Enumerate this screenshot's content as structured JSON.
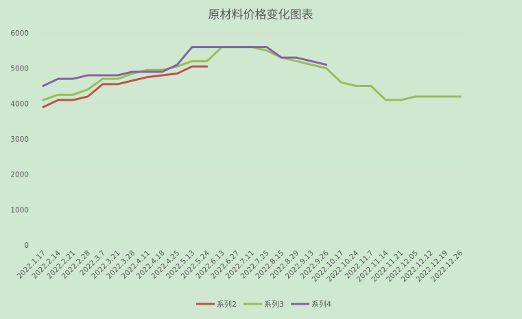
{
  "chart_data": {
    "type": "line",
    "title": "原材料价格变化图表",
    "xlabel": "",
    "ylabel": "",
    "ylim": [
      0,
      6000
    ],
    "yticks": [
      0,
      1000,
      2000,
      3000,
      4000,
      5000,
      6000
    ],
    "grid": true,
    "legend_position": "bottom",
    "categories": [
      "2022.1.17",
      "2022.2.14",
      "2022.2.21",
      "2022.2.28",
      "2022.3.7",
      "2022.3.21",
      "2022.3.28",
      "2022.4.11",
      "2022.4.18",
      "2022.4.25",
      "2022.5.13",
      "2022.5.24",
      "2022.6.13",
      "2022.6.27",
      "2022.7.11",
      "2022.7.25",
      "2022.8.15",
      "2022.8.29",
      "2022.9.13",
      "2022.9.26",
      "2022.10.17",
      "2022.10.24",
      "2022.11.7",
      "2022.11.14",
      "2022.11.21",
      "2022.12.05",
      "2022.12.12",
      "2022.12.19",
      "2022.12.26"
    ],
    "series": [
      {
        "name": "系列2",
        "color": "#c0504d",
        "values": [
          3900,
          4100,
          4100,
          4200,
          4550,
          4550,
          4650,
          4750,
          4800,
          4850,
          5050,
          5050,
          null,
          null,
          null,
          null,
          null,
          null,
          null,
          null,
          null,
          null,
          null,
          null,
          null,
          null,
          null,
          null,
          null
        ]
      },
      {
        "name": "系列3",
        "color": "#9bbb59",
        "values": [
          4100,
          4250,
          4250,
          4400,
          4700,
          4700,
          4850,
          4950,
          4950,
          5050,
          5200,
          5200,
          5600,
          5600,
          5600,
          5500,
          5300,
          5200,
          5100,
          5000,
          4600,
          4500,
          4500,
          4100,
          4100,
          4200,
          4200,
          4200,
          4200
        ]
      },
      {
        "name": "系列4",
        "color": "#8064a2",
        "values": [
          4500,
          4700,
          4700,
          4800,
          4800,
          4800,
          4900,
          4900,
          4900,
          5100,
          5600,
          5600,
          5600,
          5600,
          5600,
          5600,
          5300,
          5300,
          5200,
          5100,
          null,
          null,
          null,
          null,
          null,
          null,
          null,
          null,
          null
        ]
      }
    ]
  }
}
